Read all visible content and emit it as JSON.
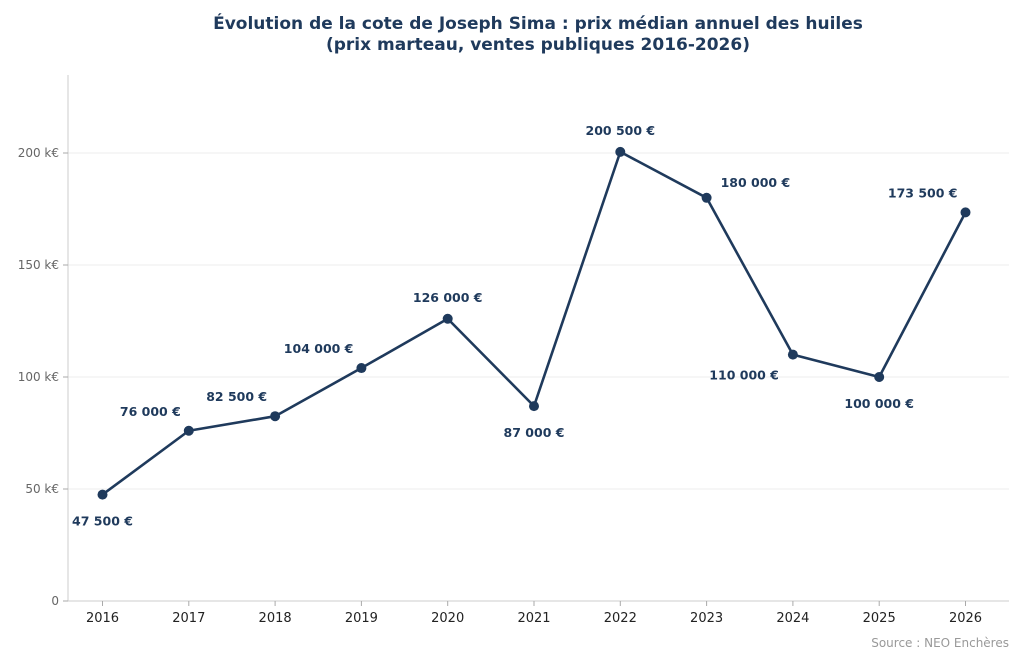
{
  "chart_data": {
    "type": "line",
    "title_line1": "Évolution de la cote de Joseph Sima : prix médian annuel des huiles",
    "title_line2": "(prix marteau, ventes publiques 2016-2026)",
    "xlabel": "",
    "ylabel": "",
    "x": [
      "2016",
      "2017",
      "2018",
      "2019",
      "2020",
      "2021",
      "2022",
      "2023",
      "2024",
      "2025",
      "2026"
    ],
    "series": [
      {
        "values": [
          47500,
          76000,
          82500,
          104000,
          126000,
          87000,
          200500,
          180000,
          110000,
          100000,
          173500
        ],
        "labels": [
          "47 500 €",
          "76 000 €",
          "82 500 €",
          "104 000 €",
          "126 000 €",
          "87 000 €",
          "200 500 €",
          "180 000 €",
          "110 000 €",
          "100 000 €",
          "173 500 €"
        ],
        "label_positions": [
          "below",
          "above-left",
          "above-left",
          "above-left",
          "above",
          "below",
          "above",
          "above-right",
          "below-left",
          "below",
          "above-left"
        ]
      }
    ],
    "ylim": [
      0,
      235000
    ],
    "yticks": [
      0,
      50000,
      100000,
      150000,
      200000
    ],
    "ytick_labels": [
      "0",
      "50 k€",
      "100 k€",
      "150 k€",
      "200 k€"
    ],
    "grid": "horizontal",
    "line_color": "#1f3a5c",
    "grid_color": "#eeeeee",
    "source": "Source : NEO Enchères"
  }
}
